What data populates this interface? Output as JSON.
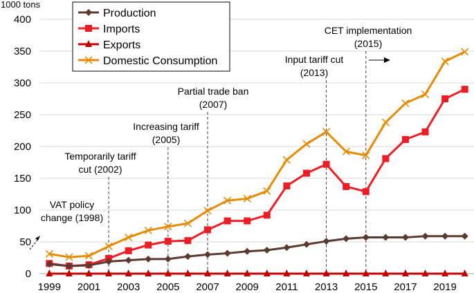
{
  "chart_data": {
    "type": "line",
    "title": "",
    "ylabel": "1000 tons",
    "xlabel": "",
    "ylim": [
      0,
      400
    ],
    "yticks": [
      0,
      50,
      100,
      150,
      200,
      250,
      300,
      350,
      400
    ],
    "x": [
      1999,
      2000,
      2001,
      2002,
      2003,
      2004,
      2005,
      2006,
      2007,
      2008,
      2009,
      2010,
      2011,
      2012,
      2013,
      2014,
      2015,
      2016,
      2017,
      2018,
      2019,
      2020
    ],
    "xtick_labels": [
      "1999",
      "2001",
      "2003",
      "2005",
      "2007",
      "2009",
      "2011",
      "2013",
      "2015",
      "2017",
      "2019"
    ],
    "grid": "horizontal",
    "legend_position": "top-left",
    "series": [
      {
        "name": "Production",
        "color": "#5a3a2e",
        "marker": "diamond",
        "values": [
          15,
          12,
          13,
          19,
          21,
          23,
          23,
          27,
          30,
          32,
          35,
          37,
          41,
          46,
          51,
          55,
          57,
          57,
          57,
          59,
          59,
          59
        ]
      },
      {
        "name": "Imports",
        "color": "#ee1c25",
        "marker": "square",
        "values": [
          16,
          12,
          14,
          24,
          36,
          45,
          51,
          52,
          69,
          83,
          83,
          92,
          138,
          158,
          172,
          137,
          129,
          181,
          211,
          223,
          275,
          290
        ]
      },
      {
        "name": "Exports",
        "color": "#c00000",
        "marker": "triangle",
        "values": [
          0,
          0,
          0,
          0,
          0,
          0,
          0,
          0,
          0,
          0,
          0,
          0,
          0,
          0,
          0,
          0,
          0,
          0,
          0,
          0,
          0,
          0
        ]
      },
      {
        "name": "Domestic Consumption",
        "color": "#e68a00",
        "marker": "x",
        "values": [
          31,
          26,
          28,
          43,
          57,
          68,
          74,
          79,
          99,
          115,
          118,
          130,
          179,
          204,
          223,
          192,
          186,
          238,
          268,
          282,
          334,
          349
        ]
      }
    ],
    "annotations": [
      {
        "lines": [
          "VAT policy",
          "change (1998)"
        ],
        "year": 1998,
        "arrow": "dashed-diagonal"
      },
      {
        "lines": [
          "Temporarily tariff",
          "cut (2002)"
        ],
        "year": 2002,
        "arrow": "dashed-vertical"
      },
      {
        "lines": [
          "Increasing tariff",
          "(2005)"
        ],
        "year": 2005,
        "arrow": "dashed-vertical"
      },
      {
        "lines": [
          "Partial trade ban",
          "(2007)"
        ],
        "year": 2007,
        "arrow": "dashed-vertical"
      },
      {
        "lines": [
          "Input tariff cut",
          "(2013)"
        ],
        "year": 2013,
        "arrow": "dashed-vertical"
      },
      {
        "lines": [
          "CET implementation",
          "(2015)"
        ],
        "year": 2015,
        "arrow": "dashed-vertical"
      }
    ]
  }
}
